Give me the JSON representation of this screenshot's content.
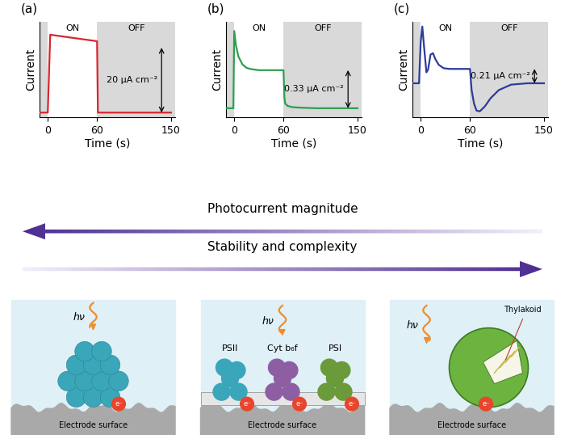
{
  "chart_data": [
    {
      "type": "line",
      "title": "(a)",
      "color": "#d9262e",
      "x": [
        -10,
        0,
        3,
        60,
        61,
        150
      ],
      "values": [
        0,
        0,
        24,
        22,
        0,
        0
      ],
      "xlim": [
        -10,
        155
      ],
      "xticks": [
        0,
        60,
        150
      ],
      "ylim": [
        -1.5,
        28
      ],
      "yticks": [],
      "tick_labels": "x",
      "x_label": "Time (s)",
      "y_label": "Current",
      "phases": [
        {
          "label": "ON",
          "start": 0,
          "end": 60
        },
        {
          "label": "OFF",
          "start": 60,
          "end": 155
        }
      ],
      "scale_bar": {
        "label": "20 µA cm⁻²",
        "start": 0,
        "end": 20
      }
    },
    {
      "type": "line",
      "title": "(b)",
      "color": "#2e9e4f",
      "x": [
        -10,
        -1,
        0,
        2,
        5,
        10,
        15,
        20,
        30,
        40,
        50,
        60,
        61,
        62,
        65,
        70,
        80,
        100,
        150
      ],
      "values": [
        0,
        0,
        0.67,
        0.55,
        0.45,
        0.38,
        0.35,
        0.34,
        0.33,
        0.33,
        0.33,
        0.33,
        0.1,
        0.04,
        0.02,
        0.01,
        0.005,
        0,
        0
      ],
      "xlim": [
        -10,
        155
      ],
      "xticks": [
        0,
        60,
        150
      ],
      "ylim": [
        -0.08,
        0.75
      ],
      "yticks": [],
      "tick_labels": "x",
      "x_label": "Time (s)",
      "y_label": "Current",
      "phases": [
        {
          "label": "ON",
          "start": 0,
          "end": 60
        },
        {
          "label": "OFF",
          "start": 60,
          "end": 155
        }
      ],
      "scale_bar": {
        "label": "0.33 µA cm⁻²",
        "start": 0,
        "end": 0.33
      }
    },
    {
      "type": "line",
      "title": "(c)",
      "color": "#2b3c9b",
      "x": [
        -10,
        -2,
        0,
        2,
        4,
        7,
        9,
        12,
        15,
        18,
        22,
        28,
        35,
        45,
        60,
        62,
        65,
        68,
        72,
        78,
        85,
        95,
        110,
        130,
        150
      ],
      "values": [
        0,
        0,
        0.6,
        0.83,
        0.55,
        0.16,
        0.2,
        0.42,
        0.44,
        0.35,
        0.27,
        0.22,
        0.21,
        0.21,
        0.21,
        -0.1,
        -0.3,
        -0.4,
        -0.41,
        -0.34,
        -0.22,
        -0.1,
        -0.02,
        0,
        0
      ],
      "xlim": [
        -10,
        155
      ],
      "xticks": [
        0,
        60,
        150
      ],
      "ylim": [
        -0.5,
        0.9
      ],
      "yticks": [],
      "tick_labels": "x",
      "x_label": "Time (s)",
      "y_label": "Current",
      "phases": [
        {
          "label": "ON",
          "start": 0,
          "end": 60
        },
        {
          "label": "OFF",
          "start": 60,
          "end": 155
        }
      ],
      "scale_bar": {
        "label": "0.21 µA cm⁻²",
        "start": 0,
        "end": 0.21
      }
    }
  ],
  "arrows": [
    {
      "label": "Photocurrent magnitude",
      "direction": "left"
    },
    {
      "label": "Stability and complexity",
      "direction": "right"
    }
  ],
  "illustrations": [
    {
      "photon": "hν",
      "surface": "Electrode surface",
      "electron": "e⁻"
    },
    {
      "photon": "hν",
      "surface": "Electrode surface",
      "electron": "e⁻",
      "proteins": [
        "PSII",
        "Cyt b₆f",
        "PSI"
      ]
    },
    {
      "photon": "hν",
      "surface": "Electrode surface",
      "electron": "e⁻",
      "organelle": "Thylakoid"
    }
  ]
}
